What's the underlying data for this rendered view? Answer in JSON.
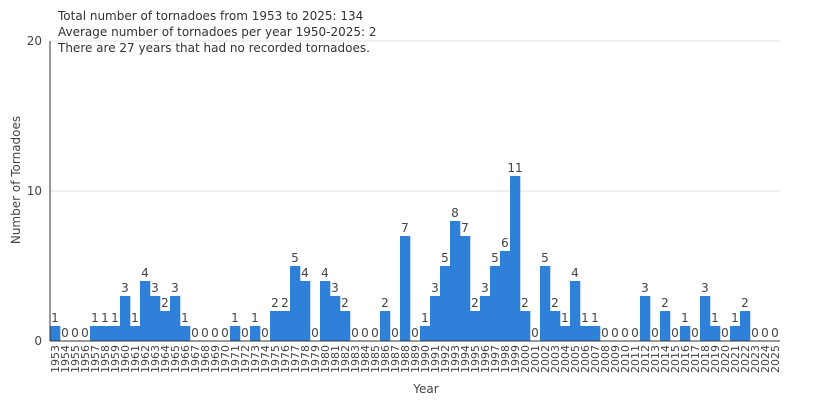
{
  "stats": {
    "line1": "Total number of tornadoes from 1953 to 2025: 134",
    "line2": "Average number of tornadoes per year 1950-2025: 2",
    "line3": "There are 27 years that had no recorded tornadoes."
  },
  "colors": {
    "bar": "#2f80d8",
    "grid": "#e0e0e0",
    "axis": "#333333",
    "text": "#444444"
  },
  "chart_data": {
    "type": "bar",
    "xlabel": "Year",
    "ylabel": "Number of Tornadoes",
    "ylim": [
      0,
      20
    ],
    "yticks": [
      0,
      10,
      20
    ],
    "grid": true,
    "categories": [
      "1953",
      "1954",
      "1955",
      "1956",
      "1957",
      "1958",
      "1959",
      "1960",
      "1961",
      "1962",
      "1963",
      "1964",
      "1965",
      "1966",
      "1967",
      "1968",
      "1969",
      "1970",
      "1971",
      "1972",
      "1973",
      "1974",
      "1975",
      "1976",
      "1977",
      "1978",
      "1979",
      "1980",
      "1981",
      "1982",
      "1983",
      "1984",
      "1985",
      "1986",
      "1987",
      "1988",
      "1989",
      "1990",
      "1991",
      "1992",
      "1993",
      "1994",
      "1995",
      "1996",
      "1997",
      "1998",
      "1999",
      "2000",
      "2001",
      "2002",
      "2003",
      "2004",
      "2005",
      "2006",
      "2007",
      "2008",
      "2009",
      "2010",
      "2011",
      "2012",
      "2013",
      "2014",
      "2015",
      "2016",
      "2017",
      "2018",
      "2019",
      "2020",
      "2021",
      "2022",
      "2023",
      "2024",
      "2025"
    ],
    "values": [
      1,
      0,
      0,
      0,
      1,
      1,
      1,
      3,
      1,
      4,
      3,
      2,
      3,
      1,
      0,
      0,
      0,
      0,
      1,
      0,
      1,
      0,
      2,
      2,
      5,
      4,
      0,
      4,
      3,
      2,
      0,
      0,
      0,
      2,
      0,
      7,
      0,
      1,
      3,
      5,
      8,
      7,
      2,
      3,
      5,
      6,
      11,
      2,
      0,
      5,
      2,
      1,
      4,
      1,
      1,
      0,
      0,
      0,
      0,
      3,
      0,
      2,
      0,
      1,
      0,
      3,
      1,
      0,
      1,
      2,
      0,
      0,
      0
    ]
  }
}
